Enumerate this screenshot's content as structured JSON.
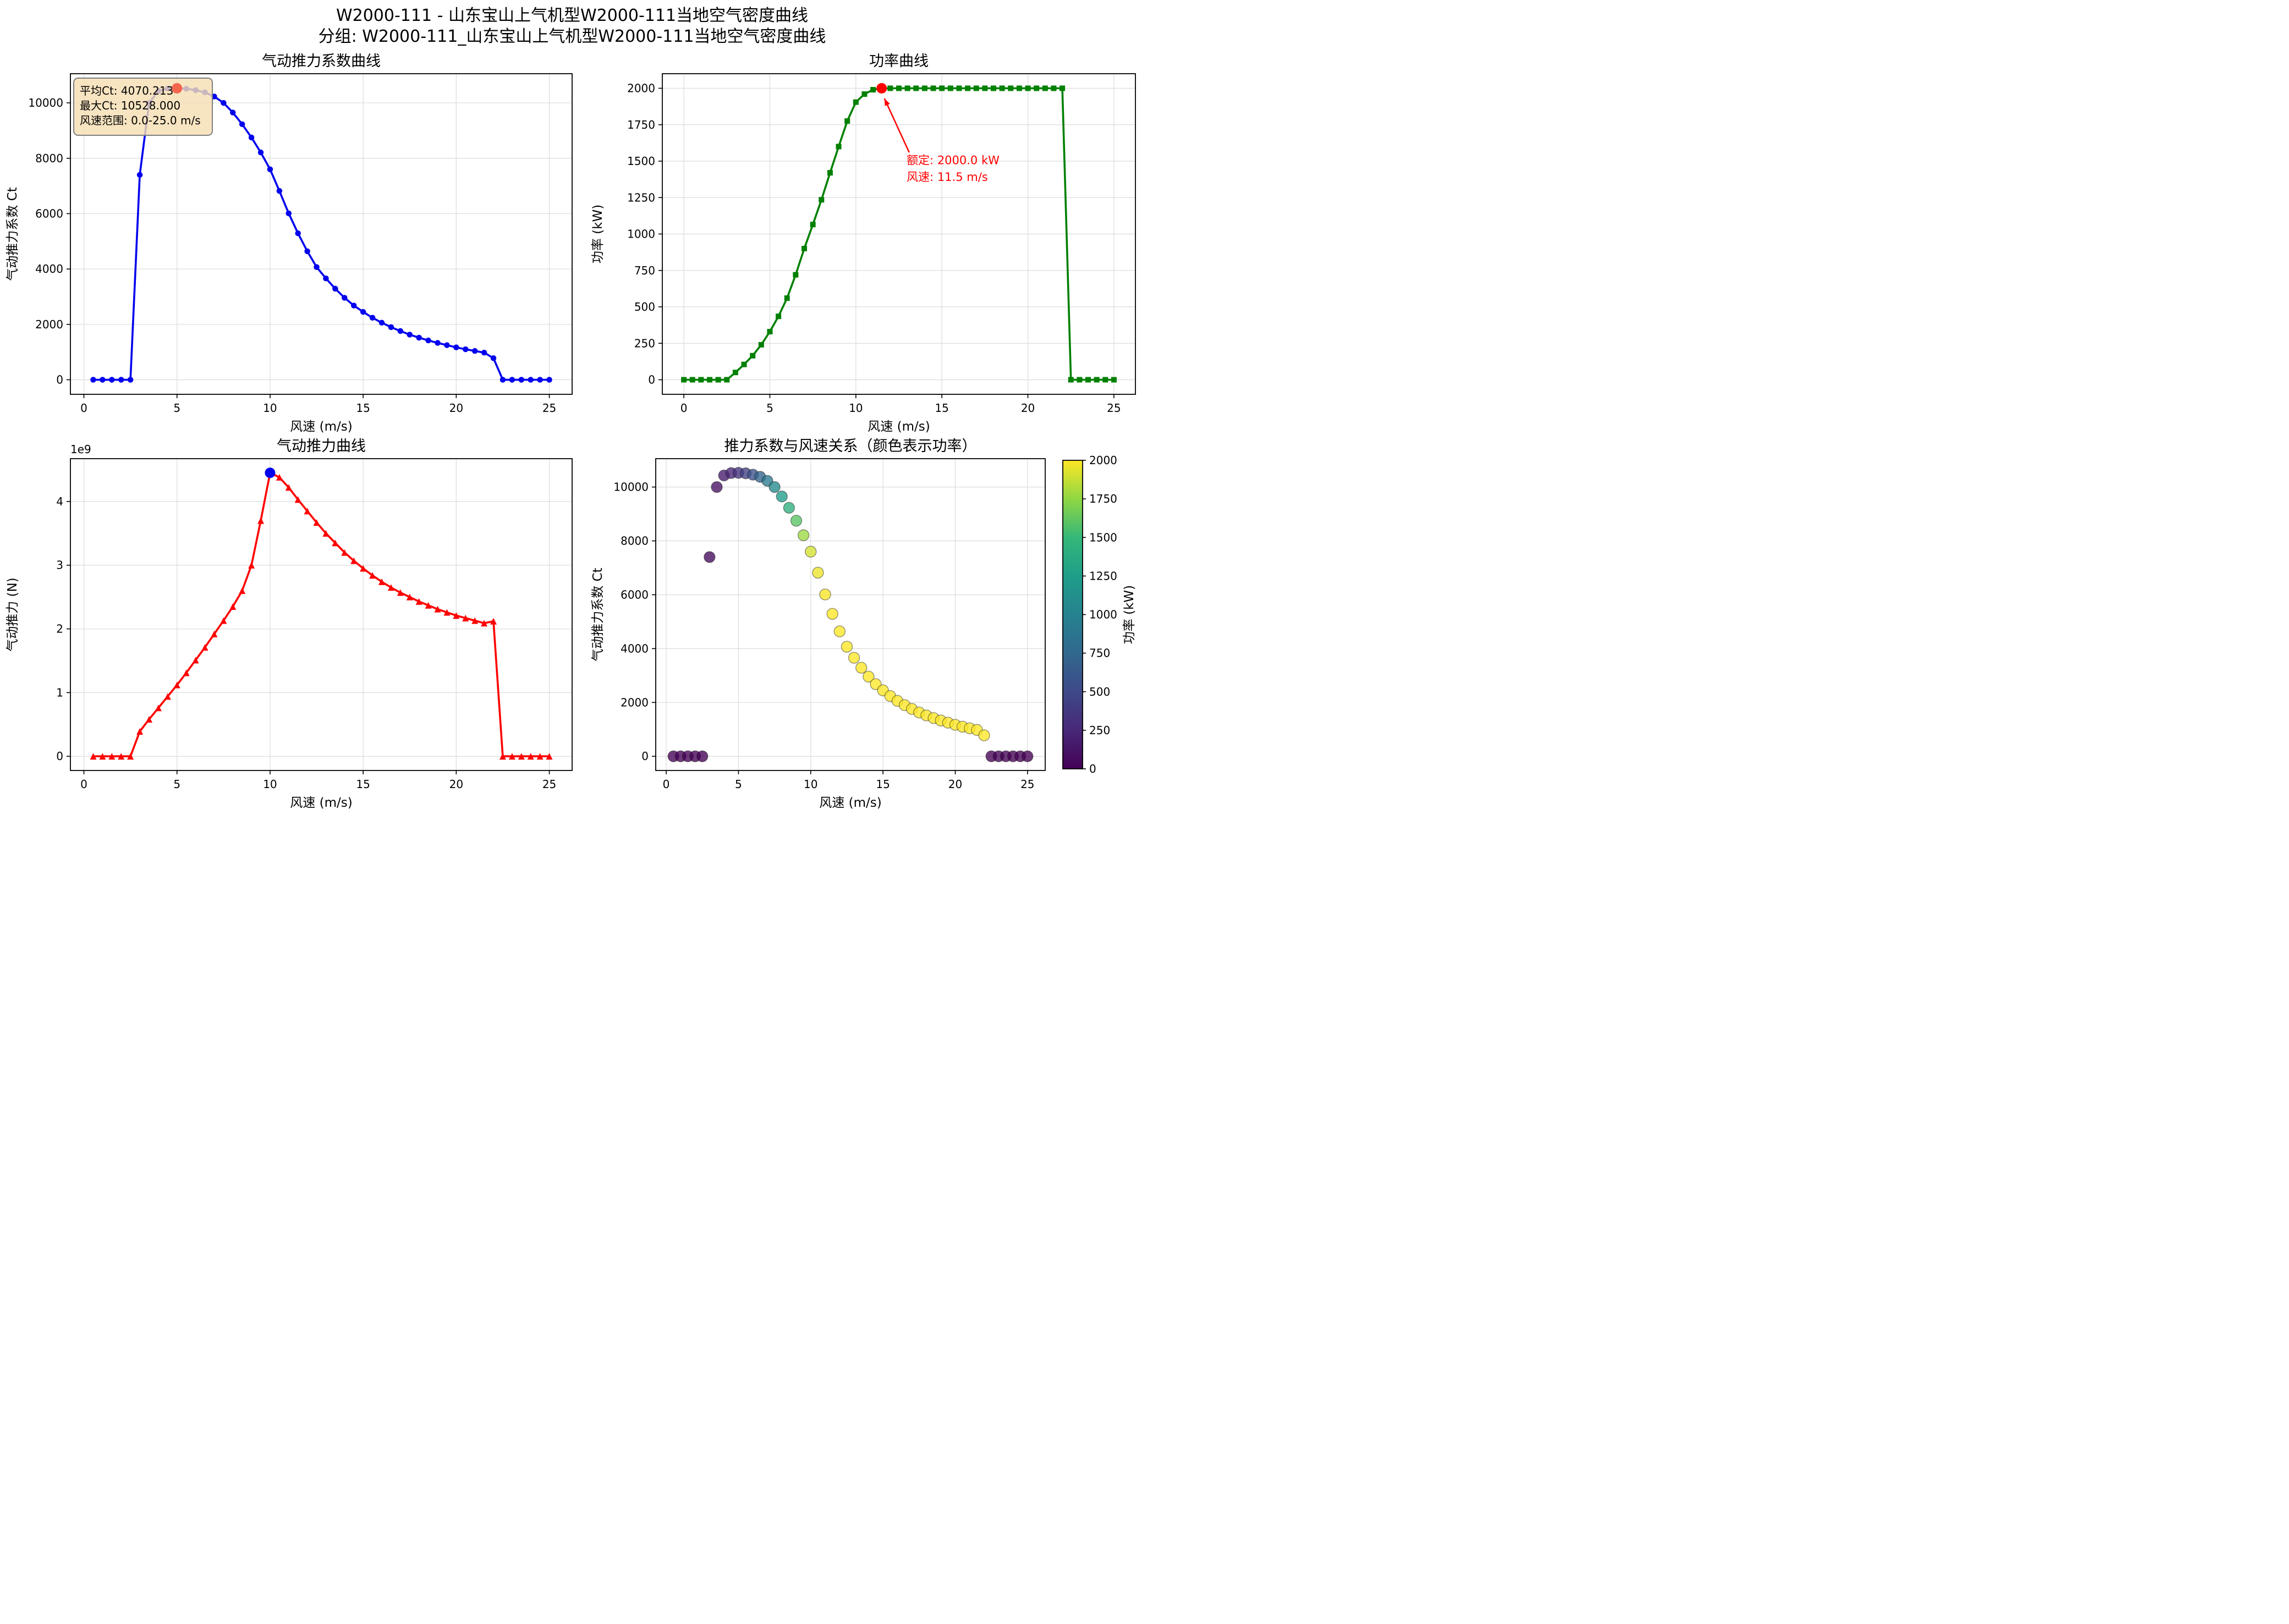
{
  "page": {
    "suptitle_line1": "W2000-111 - 山东宝山上气机型W2000-111当地空气密度曲线",
    "suptitle_line2": "分组: W2000-111_山东宝山上气机型W2000-111当地空气密度曲线"
  },
  "colors": {
    "ct_line": "#0000ee",
    "power_line": "#008000",
    "thrust_line": "#ff0000",
    "max_ct_marker": "#f4654e",
    "rated_marker": "#ff0000",
    "peak_thrust_marker": "#0000ee",
    "grid": "#dcdcdc",
    "annotation_box_bg": "#f5deb3",
    "annotation_box_border": "#7f7f7f",
    "annotation_red": "#ff0000",
    "axis": "#000000"
  },
  "viridis_stops": [
    [
      0.0,
      "#440154"
    ],
    [
      0.125,
      "#482878"
    ],
    [
      0.25,
      "#3e4989"
    ],
    [
      0.375,
      "#31688e"
    ],
    [
      0.5,
      "#26828e"
    ],
    [
      0.625,
      "#1f9e89"
    ],
    [
      0.75,
      "#35b779"
    ],
    [
      0.875,
      "#90d743"
    ],
    [
      1.0,
      "#fde725"
    ]
  ],
  "chart_data": [
    {
      "id": "ct",
      "type": "line",
      "title": "气动推力系数曲线",
      "xlabel": "风速 (m/s)",
      "ylabel": "气动推力系数 Ct",
      "xlim": [
        -0.725,
        26.225
      ],
      "ylim": [
        -526,
        11054
      ],
      "xticks": {
        "values": [
          0,
          5,
          10,
          15,
          20,
          25
        ],
        "labels": [
          "0",
          "5",
          "10",
          "15",
          "20",
          "25"
        ]
      },
      "yticks": {
        "values": [
          0,
          2000,
          4000,
          6000,
          8000,
          10000
        ],
        "labels": [
          "0",
          "2000",
          "4000",
          "6000",
          "8000",
          "10000"
        ]
      },
      "grid": true,
      "series": [
        {
          "name": "气动推力系数",
          "marker": "circle",
          "marker_size": 10.5,
          "line_width": 3.6,
          "color": "#0000ee",
          "x": [
            0.5,
            1.0,
            1.5,
            2.0,
            2.5,
            3.0,
            3.5,
            4.0,
            4.5,
            5.0,
            5.5,
            6.0,
            6.5,
            7.0,
            7.5,
            8.0,
            8.5,
            9.0,
            9.5,
            10.0,
            10.5,
            11.0,
            11.5,
            12.0,
            12.5,
            13.0,
            13.5,
            14.0,
            14.5,
            15.0,
            15.5,
            16.0,
            16.5,
            17.0,
            17.5,
            18.0,
            18.5,
            19.0,
            19.5,
            20.0,
            20.5,
            21.0,
            21.5,
            22.0,
            22.5,
            23.0,
            23.5,
            24.0,
            24.5,
            25.0
          ],
          "y": [
            0,
            0,
            0,
            0,
            0,
            7400,
            10000,
            10430,
            10520,
            10528,
            10510,
            10460,
            10380,
            10230,
            10000,
            9650,
            9230,
            8750,
            8210,
            7600,
            6820,
            6010,
            5290,
            4640,
            4070,
            3660,
            3290,
            2960,
            2680,
            2450,
            2240,
            2060,
            1900,
            1760,
            1630,
            1520,
            1420,
            1330,
            1250,
            1170,
            1100,
            1040,
            980,
            780,
            0,
            0,
            0,
            0,
            0,
            0
          ]
        }
      ],
      "box_annotation": {
        "lines": [
          "平均Ct: 4070.213",
          "最大Ct: 10528.000",
          "风速范围: 0.0-25.0 m/s"
        ],
        "bg": "#f5deb3",
        "bg_alpha": 0.82,
        "border": "#7f7f7f"
      },
      "highlights": [
        {
          "x": 5.0,
          "y": 10528,
          "color": "#f4654e",
          "r": 9.5,
          "label": "max-ct-point"
        }
      ]
    },
    {
      "id": "power",
      "type": "line",
      "title": "功率曲线",
      "xlabel": "风速 (m/s)",
      "ylabel": "功率 (kW)",
      "xlim": [
        -1.25,
        26.25
      ],
      "ylim": [
        -100,
        2100
      ],
      "xticks": {
        "values": [
          0,
          5,
          10,
          15,
          20,
          25
        ],
        "labels": [
          "0",
          "5",
          "10",
          "15",
          "20",
          "25"
        ]
      },
      "yticks": {
        "values": [
          0,
          250,
          500,
          750,
          1000,
          1250,
          1500,
          1750,
          2000
        ],
        "labels": [
          "0",
          "250",
          "500",
          "750",
          "1000",
          "1250",
          "1500",
          "1750",
          "2000"
        ]
      },
      "grid": true,
      "series": [
        {
          "name": "功率",
          "marker": "square",
          "marker_size": 10,
          "line_width": 3.6,
          "color": "#008000",
          "x": [
            0.0,
            0.5,
            1.0,
            1.5,
            2.0,
            2.5,
            3.0,
            3.5,
            4.0,
            4.5,
            5.0,
            5.5,
            6.0,
            6.5,
            7.0,
            7.5,
            8.0,
            8.5,
            9.0,
            9.5,
            10.0,
            10.5,
            11.0,
            11.5,
            12.0,
            12.5,
            13.0,
            13.5,
            14.0,
            14.5,
            15.0,
            15.5,
            16.0,
            16.5,
            17.0,
            17.5,
            18.0,
            18.5,
            19.0,
            19.5,
            20.0,
            20.5,
            21.0,
            21.5,
            22.0,
            22.5,
            23.0,
            23.5,
            24.0,
            24.5,
            25.0
          ],
          "y": [
            0,
            0,
            0,
            0,
            0,
            0,
            50,
            105,
            165,
            240,
            330,
            435,
            560,
            720,
            900,
            1065,
            1235,
            1420,
            1600,
            1775,
            1905,
            1960,
            1990,
            2000,
            2000,
            2000,
            2000,
            2000,
            2000,
            2000,
            2000,
            2000,
            2000,
            2000,
            2000,
            2000,
            2000,
            2000,
            2000,
            2000,
            2000,
            2000,
            2000,
            2000,
            2000,
            0,
            0,
            0,
            0,
            0,
            0
          ]
        }
      ],
      "arrow_annotation": {
        "lines": [
          "额定: 2000.0 kW",
          "风速: 11.5 m/s"
        ],
        "color": "#ff0000",
        "text_x": 12.95,
        "text_y": 1480,
        "line_step": 115,
        "arrow": {
          "from_x": 13.1,
          "from_y": 1560,
          "to_x": 11.66,
          "to_y": 1930
        }
      },
      "highlights": [
        {
          "x": 11.5,
          "y": 2000,
          "color": "#ff0000",
          "r": 9.5,
          "label": "rated-power-point"
        }
      ]
    },
    {
      "id": "thrust",
      "type": "line",
      "title": "气动推力曲线",
      "xlabel": "风速 (m/s)",
      "ylabel": "气动推力 (N)",
      "offset_text": "1e9",
      "xlim": [
        -0.725,
        26.225
      ],
      "ylim": [
        -0.2225,
        4.6725
      ],
      "xticks": {
        "values": [
          0,
          5,
          10,
          15,
          20,
          25
        ],
        "labels": [
          "0",
          "5",
          "10",
          "15",
          "20",
          "25"
        ]
      },
      "yticks": {
        "values": [
          0,
          1,
          2,
          3,
          4
        ],
        "labels": [
          "0",
          "1",
          "2",
          "3",
          "4"
        ]
      },
      "grid": true,
      "series": [
        {
          "name": "气动推力",
          "marker": "triangle",
          "marker_size": 12,
          "line_width": 3.6,
          "color": "#ff0000",
          "x": [
            0.5,
            1.0,
            1.5,
            2.0,
            2.5,
            3.0,
            3.5,
            4.0,
            4.5,
            5.0,
            5.5,
            6.0,
            6.5,
            7.0,
            7.5,
            8.0,
            8.5,
            9.0,
            9.5,
            10.0,
            10.5,
            11.0,
            11.5,
            12.0,
            12.5,
            13.0,
            13.5,
            14.0,
            14.5,
            15.0,
            15.5,
            16.0,
            16.5,
            17.0,
            17.5,
            18.0,
            18.5,
            19.0,
            19.5,
            20.0,
            20.5,
            21.0,
            21.5,
            22.0,
            22.5,
            23.0,
            23.5,
            24.0,
            24.5,
            25.0
          ],
          "y": [
            0,
            0,
            0,
            0,
            0,
            0.39,
            0.58,
            0.76,
            0.94,
            1.12,
            1.31,
            1.51,
            1.71,
            1.92,
            2.13,
            2.35,
            2.6,
            3.0,
            3.7,
            4.45,
            4.38,
            4.22,
            4.03,
            3.85,
            3.67,
            3.5,
            3.35,
            3.2,
            3.07,
            2.95,
            2.84,
            2.74,
            2.65,
            2.57,
            2.5,
            2.43,
            2.37,
            2.31,
            2.26,
            2.21,
            2.17,
            2.13,
            2.09,
            2.12,
            0,
            0,
            0,
            0,
            0,
            0
          ]
        }
      ],
      "highlights": [
        {
          "x": 10.0,
          "y": 4.45,
          "color": "#0000ee",
          "r": 9.5,
          "label": "peak-thrust-point"
        }
      ]
    },
    {
      "id": "scatter",
      "type": "scatter",
      "title": "推力系数与风速关系（颜色表示功率）",
      "xlabel": "风速 (m/s)",
      "ylabel": "气动推力系数 Ct",
      "xlim": [
        -0.725,
        26.225
      ],
      "ylim": [
        -526,
        11054
      ],
      "xticks": {
        "values": [
          0,
          5,
          10,
          15,
          20,
          25
        ],
        "labels": [
          "0",
          "5",
          "10",
          "15",
          "20",
          "25"
        ]
      },
      "yticks": {
        "values": [
          0,
          2000,
          4000,
          6000,
          8000,
          10000
        ],
        "labels": [
          "0",
          "2000",
          "4000",
          "6000",
          "8000",
          "10000"
        ]
      },
      "grid": true,
      "scatter": {
        "marker_r": 10,
        "alpha": 0.78,
        "edge": "rgba(20,20,20,0.45)",
        "cmap": "viridis",
        "vmin": 0,
        "vmax": 2000,
        "x": [
          0.5,
          1.0,
          1.5,
          2.0,
          2.5,
          3.0,
          3.5,
          4.0,
          4.5,
          5.0,
          5.5,
          6.0,
          6.5,
          7.0,
          7.5,
          8.0,
          8.5,
          9.0,
          9.5,
          10.0,
          10.5,
          11.0,
          11.5,
          12.0,
          12.5,
          13.0,
          13.5,
          14.0,
          14.5,
          15.0,
          15.5,
          16.0,
          16.5,
          17.0,
          17.5,
          18.0,
          18.5,
          19.0,
          19.5,
          20.0,
          20.5,
          21.0,
          21.5,
          22.0,
          22.5,
          23.0,
          23.5,
          24.0,
          24.5,
          25.0
        ],
        "y": [
          0,
          0,
          0,
          0,
          0,
          7400,
          10000,
          10430,
          10520,
          10528,
          10510,
          10460,
          10380,
          10230,
          10000,
          9650,
          9230,
          8750,
          8210,
          7600,
          6820,
          6010,
          5290,
          4640,
          4070,
          3660,
          3290,
          2960,
          2680,
          2450,
          2240,
          2060,
          1900,
          1760,
          1630,
          1520,
          1420,
          1330,
          1250,
          1170,
          1100,
          1040,
          980,
          780,
          0,
          0,
          0,
          0,
          0,
          0
        ],
        "c": [
          0,
          0,
          0,
          0,
          0,
          50,
          105,
          165,
          240,
          330,
          435,
          560,
          720,
          900,
          1065,
          1235,
          1420,
          1600,
          1775,
          1905,
          1960,
          1990,
          2000,
          2000,
          2000,
          2000,
          2000,
          2000,
          2000,
          2000,
          2000,
          2000,
          2000,
          2000,
          2000,
          2000,
          2000,
          2000,
          2000,
          2000,
          2000,
          2000,
          2000,
          2000,
          0,
          0,
          0,
          0,
          0,
          0
        ]
      },
      "colorbar": {
        "label": "功率 (kW)",
        "ticks": {
          "values": [
            0,
            250,
            500,
            750,
            1000,
            1250,
            1500,
            1750,
            2000
          ],
          "labels": [
            "0",
            "250",
            "500",
            "750",
            "1000",
            "1250",
            "1500",
            "1750",
            "2000"
          ]
        },
        "vmin": 0,
        "vmax": 2000
      }
    }
  ]
}
